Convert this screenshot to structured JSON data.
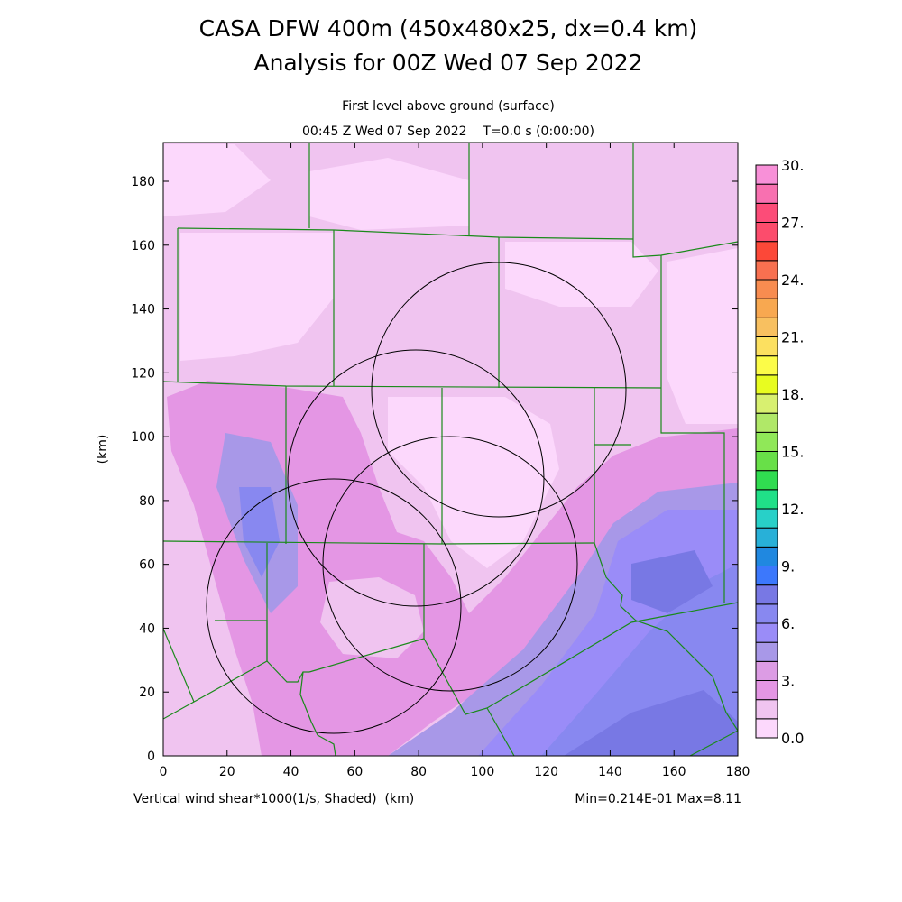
{
  "header": {
    "title": "CASA DFW 400m (450x480x25, dx=0.4 km)",
    "subtitle": "Analysis for 00Z Wed 07 Sep 2022",
    "level": "First level above ground (surface)",
    "time": "00:45 Z Wed 07 Sep 2022    T=0.0 s (0:00:00)"
  },
  "footer": {
    "variable": "Vertical wind shear*1000(1/s, Shaded)  (km)",
    "minmax": "Min=0.214E-01 Max=8.11"
  },
  "chart_data": {
    "type": "heatmap",
    "title": "CASA DFW 400m (450x480x25, dx=0.4 km)",
    "xlabel": "(km)",
    "ylabel": "(km)",
    "xlim": [
      0,
      180
    ],
    "ylim": [
      0,
      192
    ],
    "x_ticks": [
      "0",
      "20",
      "40",
      "60",
      "80",
      "100",
      "120",
      "140",
      "160",
      "180"
    ],
    "y_ticks": [
      "0",
      "20",
      "40",
      "60",
      "80",
      "100",
      "120",
      "140",
      "160",
      "180"
    ],
    "field": "Vertical wind shear*1000 (1/s)",
    "min": 0.0214,
    "max": 8.11,
    "colorbar": {
      "range": [
        0,
        30
      ],
      "step": 1,
      "labels": [
        "0.0",
        "3.",
        "6.",
        "9.",
        "12.",
        "15.",
        "18.",
        "21.",
        "24.",
        "27.",
        "30."
      ],
      "colors": [
        "#fcd8fc",
        "#f0c4f0",
        "#e496e4",
        "#dc9ce4",
        "#a898e8",
        "#9a8cf8",
        "#8888f0",
        "#7878e4",
        "#3c78fc",
        "#2088e0",
        "#28b0d8",
        "#28d0c8",
        "#20e088",
        "#30dc50",
        "#68e048",
        "#90e858",
        "#b0e868",
        "#d8f070",
        "#e8fc20",
        "#fcfc48",
        "#fce060",
        "#f8c060",
        "#f8a850",
        "#f88c50",
        "#f87050",
        "#fc4838",
        "#fc4c6c",
        "#fc4c78",
        "#f870b0",
        "#f890d8"
      ]
    }
  }
}
